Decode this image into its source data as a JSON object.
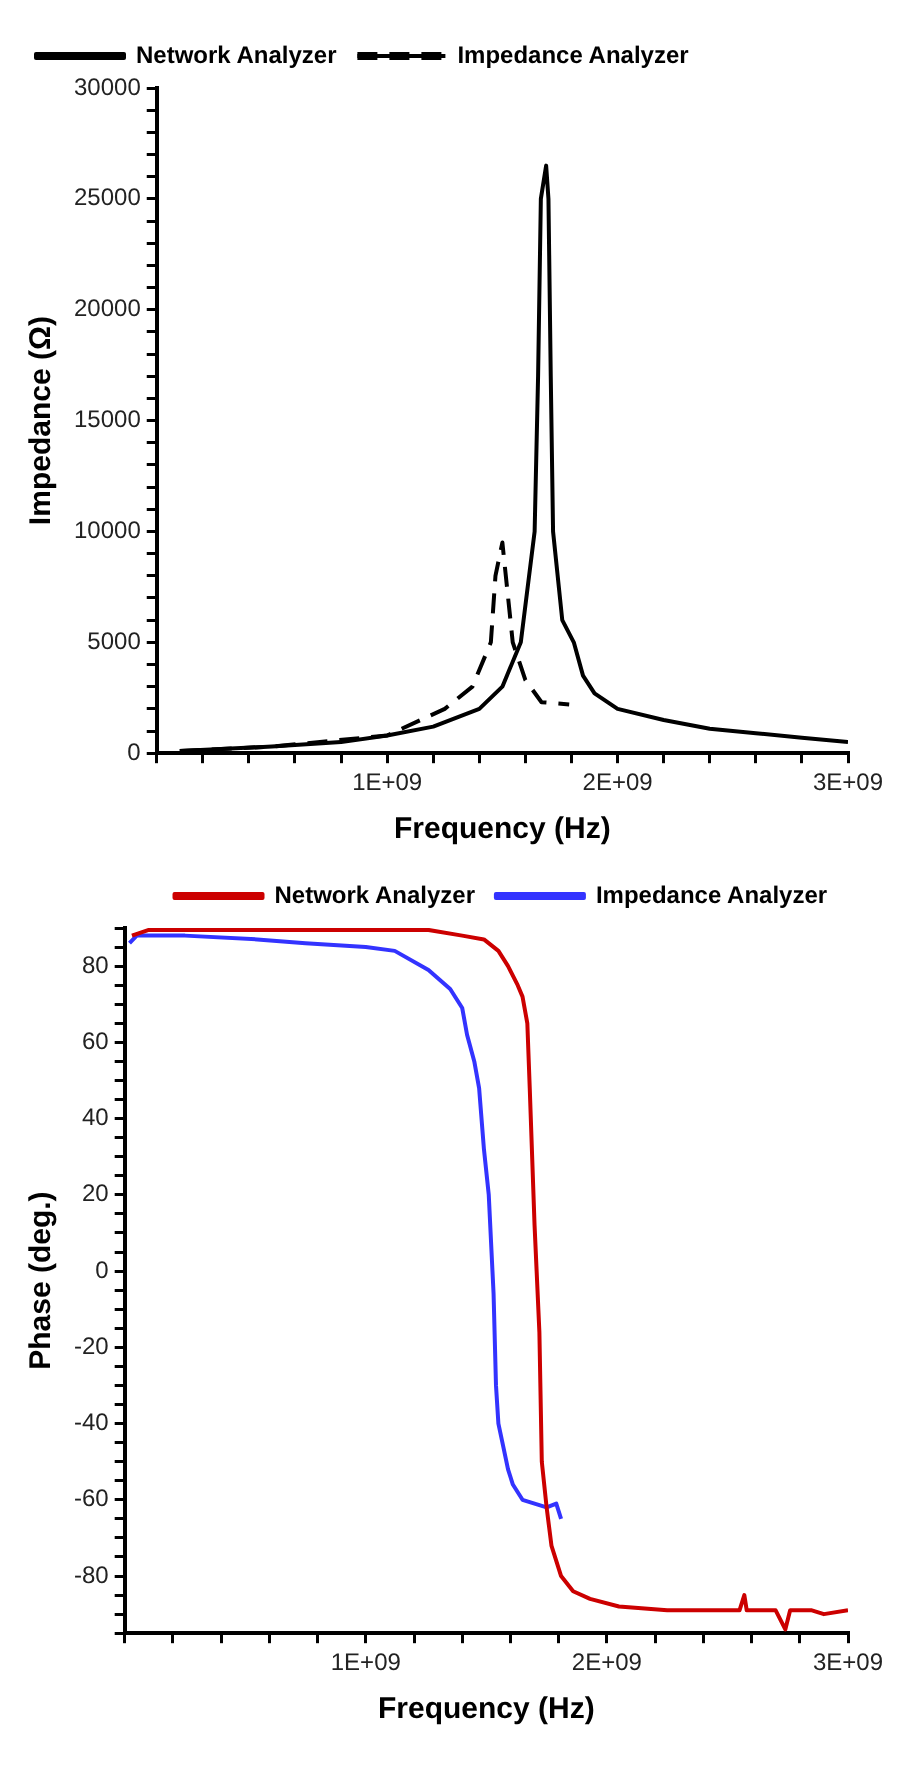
{
  "chart_data": [
    {
      "type": "line",
      "xlabel": "Frequency (Hz)",
      "ylabel": "Impedance (Ω)",
      "legend": "top left",
      "grid": false,
      "marker": "none",
      "xlim": [
        0,
        3000000000
      ],
      "ylim": [
        0,
        30000
      ],
      "xticks": [
        {
          "value": 0,
          "label": null
        },
        {
          "value": 200000000,
          "label": null
        },
        {
          "value": 400000000,
          "label": null
        },
        {
          "value": 600000000,
          "label": null
        },
        {
          "value": 800000000,
          "label": null
        },
        {
          "value": 1000000000,
          "label": "1E+09"
        },
        {
          "value": 1200000000,
          "label": null
        },
        {
          "value": 1400000000,
          "label": null
        },
        {
          "value": 1600000000,
          "label": null
        },
        {
          "value": 1800000000,
          "label": null
        },
        {
          "value": 2000000000,
          "label": "2E+09"
        },
        {
          "value": 2200000000,
          "label": null
        },
        {
          "value": 2400000000,
          "label": null
        },
        {
          "value": 2600000000,
          "label": null
        },
        {
          "value": 2800000000,
          "label": null
        },
        {
          "value": 3000000000,
          "label": "3E+09"
        }
      ],
      "yticks": [
        0,
        {
          "value": 1000,
          "label": null
        },
        {
          "value": 2000,
          "label": null
        },
        {
          "value": 3000,
          "label": null
        },
        {
          "value": 4000,
          "label": null
        },
        5000,
        {
          "value": 6000,
          "label": null
        },
        {
          "value": 7000,
          "label": null
        },
        {
          "value": 8000,
          "label": null
        },
        {
          "value": 9000,
          "label": null
        },
        10000,
        {
          "value": 11000,
          "label": null
        },
        {
          "value": 12000,
          "label": null
        },
        {
          "value": 13000,
          "label": null
        },
        {
          "value": 14000,
          "label": null
        },
        15000,
        {
          "value": 16000,
          "label": null
        },
        {
          "value": 17000,
          "label": null
        },
        {
          "value": 18000,
          "label": null
        },
        {
          "value": 19000,
          "label": null
        },
        20000,
        {
          "value": 21000,
          "label": null
        },
        {
          "value": 22000,
          "label": null
        },
        {
          "value": 23000,
          "label": null
        },
        {
          "value": 24000,
          "label": null
        },
        25000,
        {
          "value": 26000,
          "label": null
        },
        {
          "value": 27000,
          "label": null
        },
        {
          "value": 28000,
          "label": null
        },
        {
          "value": 29000,
          "label": null
        },
        30000
      ],
      "series": [
        {
          "name": "Network Analyzer",
          "color": "#000000",
          "line_style": "solid",
          "x": [
            100000000,
            300000000,
            500000000,
            800000000,
            1000000000,
            1200000000,
            1400000000,
            1500000000,
            1580000000,
            1640000000,
            1655000000,
            1667000000,
            1690000000,
            1700000000,
            1710000000,
            1720000000,
            1760000000,
            1810000000,
            1850000000,
            1900000000,
            2000000000,
            2200000000,
            2400000000,
            2600000000,
            2800000000,
            3000000000
          ],
          "values": [
            100,
            200,
            300,
            500,
            800,
            1200,
            2000,
            3000,
            5000,
            10000,
            17000,
            25000,
            26500,
            25000,
            17000,
            10000,
            6000,
            5000,
            3500,
            2700,
            2000,
            1500,
            1100,
            900,
            700,
            500
          ]
        },
        {
          "name": "Impedance Analyzer",
          "color": "#000000",
          "line_style": "dashed",
          "x": [
            100000000,
            500000000,
            1000000000,
            1250000000,
            1370000000,
            1450000000,
            1470000000,
            1500000000,
            1510000000,
            1530000000,
            1545000000,
            1600000000,
            1670000000,
            1790000000
          ],
          "values": [
            100,
            300,
            800,
            2000,
            3000,
            5000,
            8000,
            9500,
            8500,
            6500,
            5000,
            3300,
            2300,
            2200
          ]
        }
      ]
    },
    {
      "type": "line",
      "xlabel": "Frequency (Hz)",
      "ylabel": "Phase (deg.)",
      "legend": "top right",
      "grid": false,
      "marker": "none",
      "xlim": [
        0,
        3000000000
      ],
      "ylim": [
        -95,
        90
      ],
      "xticks": [
        {
          "value": 0,
          "label": null
        },
        {
          "value": 200000000,
          "label": null
        },
        {
          "value": 400000000,
          "label": null
        },
        {
          "value": 600000000,
          "label": null
        },
        {
          "value": 800000000,
          "label": null
        },
        {
          "value": 1000000000,
          "label": "1E+09"
        },
        {
          "value": 1200000000,
          "label": null
        },
        {
          "value": 1400000000,
          "label": null
        },
        {
          "value": 1600000000,
          "label": null
        },
        {
          "value": 1800000000,
          "label": null
        },
        {
          "value": 2000000000,
          "label": "2E+09"
        },
        {
          "value": 2200000000,
          "label": null
        },
        {
          "value": 2400000000,
          "label": null
        },
        {
          "value": 2600000000,
          "label": null
        },
        {
          "value": 2800000000,
          "label": null
        },
        {
          "value": 3000000000,
          "label": "3E+09"
        }
      ],
      "yticks": [
        {
          "value": -95,
          "label": null
        },
        {
          "value": -90,
          "label": null
        },
        {
          "value": -85,
          "label": null
        },
        -80,
        {
          "value": -75,
          "label": null
        },
        {
          "value": -70,
          "label": null
        },
        {
          "value": -65,
          "label": null
        },
        -60,
        {
          "value": -55,
          "label": null
        },
        {
          "value": -50,
          "label": null
        },
        {
          "value": -45,
          "label": null
        },
        -40,
        {
          "value": -35,
          "label": null
        },
        {
          "value": -30,
          "label": null
        },
        {
          "value": -25,
          "label": null
        },
        -20,
        {
          "value": -15,
          "label": null
        },
        {
          "value": -10,
          "label": null
        },
        {
          "value": -5,
          "label": null
        },
        0,
        {
          "value": 5,
          "label": null
        },
        {
          "value": 10,
          "label": null
        },
        {
          "value": 15,
          "label": null
        },
        20,
        {
          "value": 25,
          "label": null
        },
        {
          "value": 30,
          "label": null
        },
        {
          "value": 35,
          "label": null
        },
        40,
        {
          "value": 45,
          "label": null
        },
        {
          "value": 50,
          "label": null
        },
        {
          "value": 55,
          "label": null
        },
        60,
        {
          "value": 65,
          "label": null
        },
        {
          "value": 70,
          "label": null
        },
        {
          "value": 75,
          "label": null
        },
        80,
        {
          "value": 85,
          "label": null
        },
        {
          "value": 90,
          "label": null
        }
      ],
      "series": [
        {
          "name": "Network Analyzer",
          "color": "#cc0000",
          "line_style": "solid",
          "x": [
            30000000,
            100000000,
            1260000000,
            1400000000,
            1490000000,
            1550000000,
            1590000000,
            1630000000,
            1650000000,
            1670000000,
            1680000000,
            1700000000,
            1720000000,
            1730000000,
            1750000000,
            1770000000,
            1810000000,
            1860000000,
            1930000000,
            2050000000,
            2250000000,
            2550000000,
            2570000000,
            2580000000,
            2700000000,
            2740000000,
            2760000000,
            2850000000,
            2900000000,
            3000000000
          ],
          "values": [
            88,
            89.5,
            89.5,
            88,
            87,
            84,
            80,
            75,
            72,
            65,
            48,
            12,
            -16,
            -50,
            -62,
            -72,
            -80,
            -84,
            -86,
            -88,
            -89,
            -89,
            -85,
            -89,
            -89,
            -94,
            -89,
            -89,
            -90,
            -89
          ]
        },
        {
          "name": "Impedance Analyzer",
          "color": "#3333ff",
          "line_style": "solid",
          "x": [
            20000000,
            50000000,
            250000000,
            550000000,
            750000000,
            1000000000,
            1120000000,
            1260000000,
            1350000000,
            1400000000,
            1420000000,
            1450000000,
            1470000000,
            1490000000,
            1510000000,
            1530000000,
            1540000000,
            1550000000,
            1570000000,
            1590000000,
            1610000000,
            1650000000,
            1700000000,
            1750000000,
            1790000000,
            1810000000
          ],
          "values": [
            86,
            88,
            88,
            87,
            86,
            85,
            84,
            79,
            74,
            69,
            62,
            55,
            48,
            32,
            20,
            -6,
            -30,
            -40,
            -46,
            -52,
            -56,
            -60,
            -61,
            -62,
            -61,
            -65
          ]
        }
      ]
    }
  ]
}
